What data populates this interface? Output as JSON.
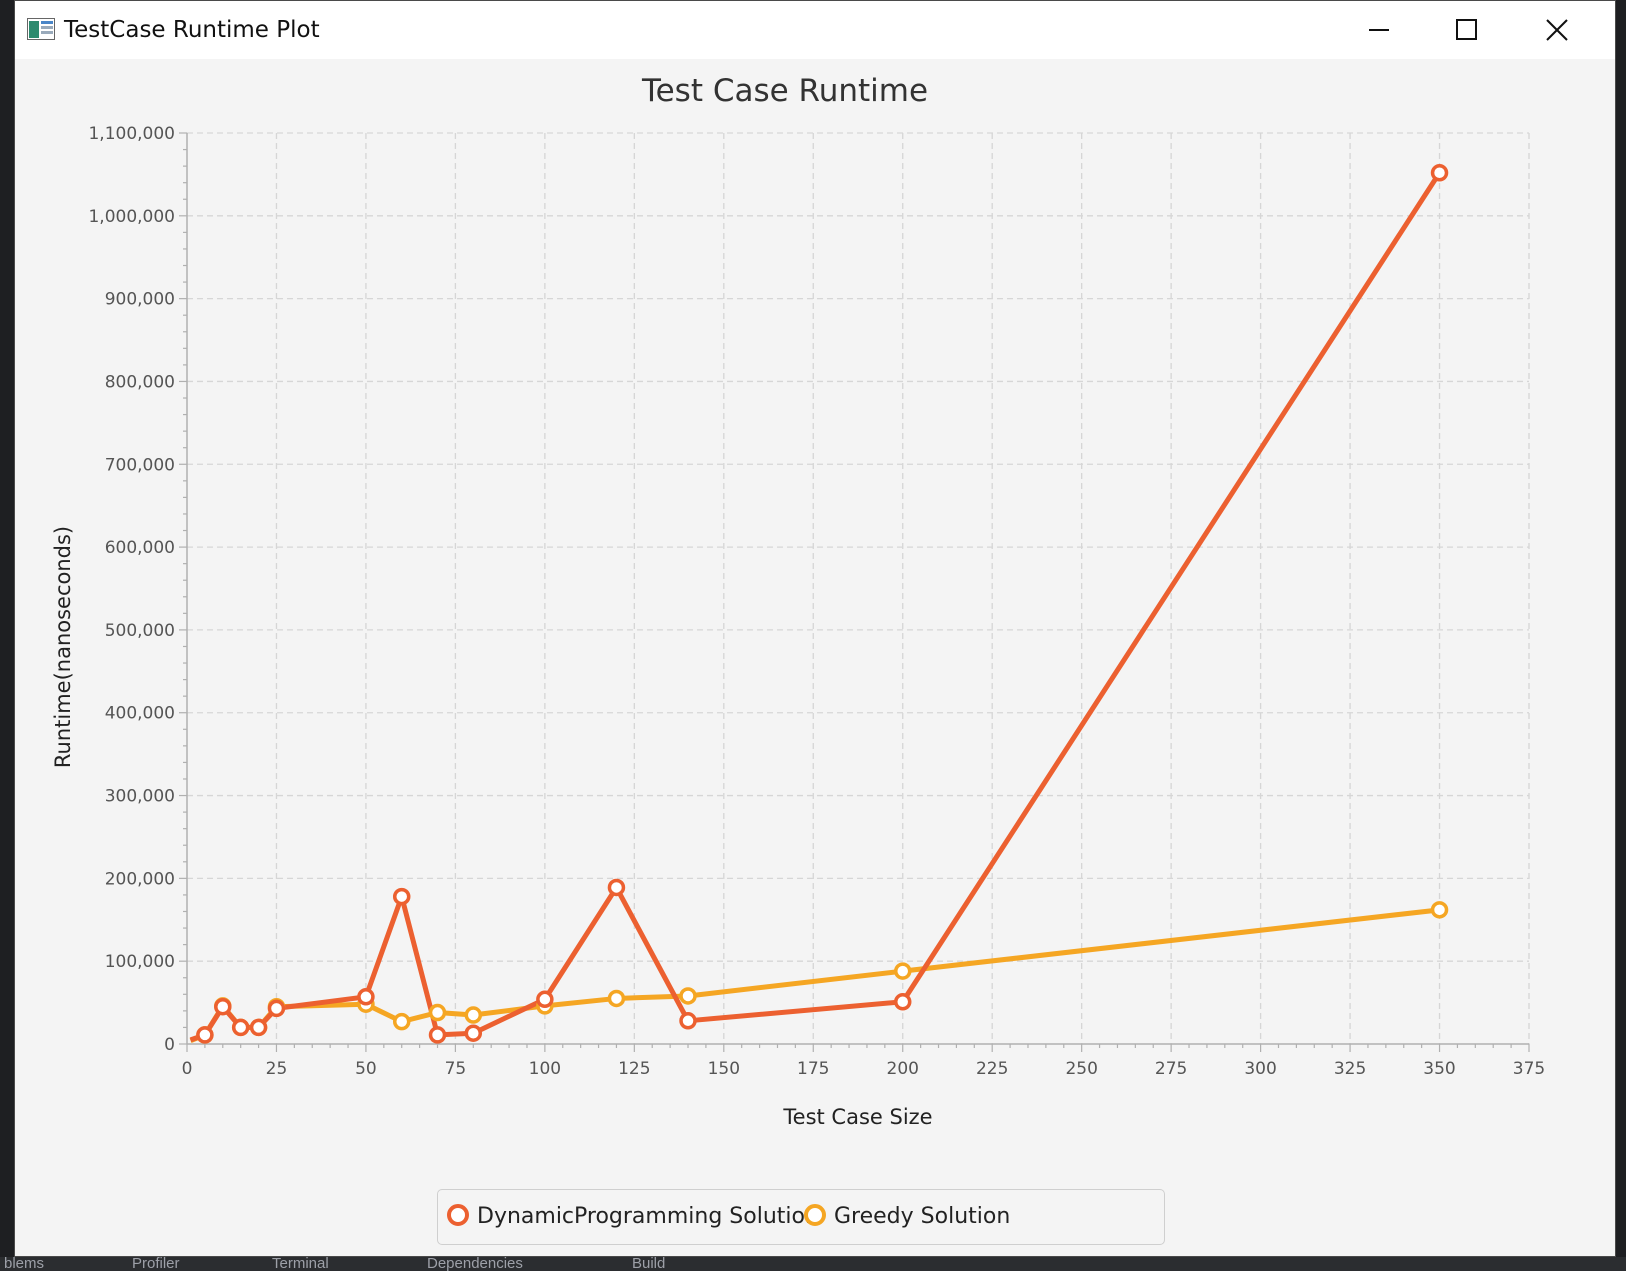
{
  "window": {
    "title": "TestCase Runtime Plot"
  },
  "background_text": {
    "bottom_tabs": [
      "blems",
      "Profiler",
      "Terminal",
      "Dependencies",
      "Build"
    ]
  },
  "colors": {
    "dp": "#ec6030",
    "greedy": "#f5a623"
  },
  "chart_data": {
    "type": "line",
    "title": "Test Case Runtime",
    "xlabel": "Test Case Size",
    "ylabel": "Runtime(nanoseconds)",
    "xlim": [
      0,
      375
    ],
    "ylim": [
      0,
      1100000
    ],
    "x_ticks": [
      0,
      25,
      50,
      75,
      100,
      125,
      150,
      175,
      200,
      225,
      250,
      275,
      300,
      325,
      350,
      375
    ],
    "x_tick_labels": [
      "0",
      "25",
      "50",
      "75",
      "100",
      "125",
      "150",
      "175",
      "200",
      "225",
      "250",
      "275",
      "300",
      "325",
      "350",
      "375"
    ],
    "y_ticks": [
      0,
      100000,
      200000,
      300000,
      400000,
      500000,
      600000,
      700000,
      800000,
      900000,
      1000000,
      1100000
    ],
    "y_tick_labels": [
      "0",
      "100,000",
      "200,000",
      "300,000",
      "400,000",
      "500,000",
      "600,000",
      "700,000",
      "800,000",
      "900,000",
      "1,000,000",
      "1,100,000"
    ],
    "grid": true,
    "legend_position": "bottom-center",
    "series": [
      {
        "name": "DynamicProgramming Solution",
        "color": "#ec6030",
        "x": [
          1,
          5,
          10,
          15,
          20,
          25,
          50,
          60,
          70,
          80,
          100,
          120,
          140,
          200,
          350
        ],
        "y": [
          5000,
          11000,
          45000,
          20000,
          20000,
          43000,
          57000,
          178000,
          11000,
          13000,
          54000,
          189000,
          28000,
          51000,
          1052000
        ]
      },
      {
        "name": "Greedy Solution",
        "color": "#f5a623",
        "x": [
          1,
          5,
          10,
          15,
          20,
          25,
          50,
          60,
          70,
          80,
          100,
          120,
          140,
          200,
          350
        ],
        "y": [
          4000,
          11000,
          46000,
          20000,
          20000,
          45000,
          48000,
          27000,
          38000,
          35000,
          46000,
          55000,
          58000,
          88000,
          162000
        ]
      }
    ]
  }
}
